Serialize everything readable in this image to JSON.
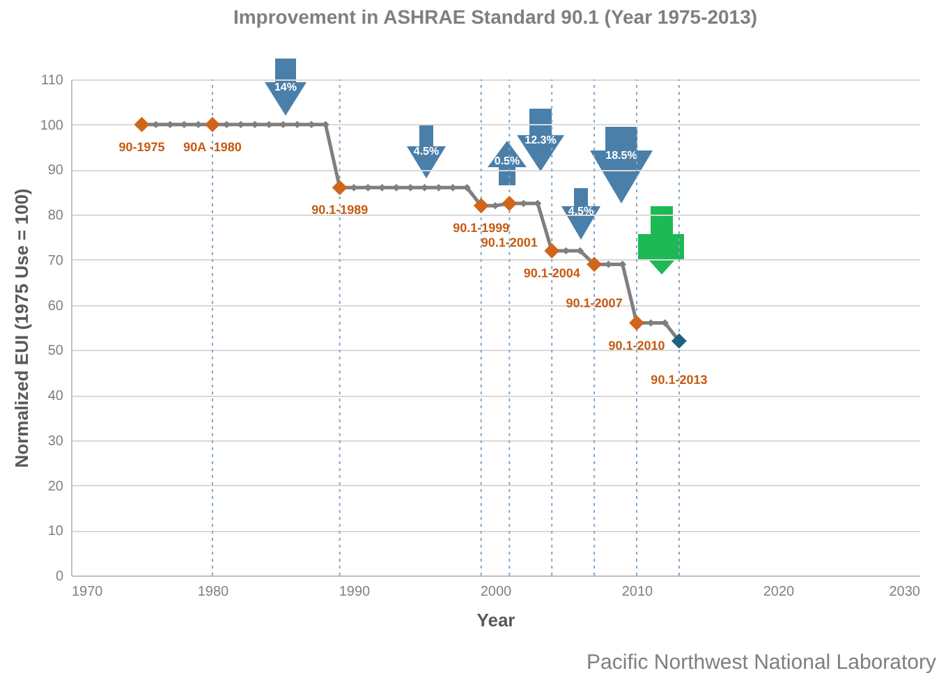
{
  "chart_data": {
    "type": "line",
    "title": "Improvement in ASHRAE Standard 90.1 (Year 1975-2013)",
    "xlabel": "Year",
    "ylabel": "Normalized EUI (1975 Use = 100)",
    "xlim": [
      1970,
      2030
    ],
    "xticks": [
      1970,
      1980,
      1990,
      2000,
      2010,
      2020,
      2030
    ],
    "ylim": [
      0,
      110
    ],
    "yticks": [
      0,
      10,
      20,
      30,
      40,
      50,
      60,
      70,
      80,
      90,
      100,
      110
    ],
    "grid": "y",
    "marker": "diamond",
    "line_style": "solid",
    "series": [
      {
        "type": "line",
        "color": "#7f7f7f",
        "x": [
          1975,
          1976,
          1977,
          1978,
          1979,
          1980,
          1981,
          1982,
          1983,
          1984,
          1985,
          1986,
          1987,
          1988,
          1989,
          1990,
          1991,
          1992,
          1993,
          1994,
          1995,
          1996,
          1997,
          1998,
          1999,
          2000,
          2001,
          2002,
          2003,
          2004,
          2005,
          2006,
          2007,
          2008,
          2009,
          2010,
          2011,
          2012,
          2013
        ],
        "values": [
          100,
          100,
          100,
          100,
          100,
          100,
          100,
          100,
          100,
          100,
          100,
          100,
          100,
          100,
          86,
          86,
          86,
          86,
          86,
          86,
          86,
          86,
          86,
          86,
          82,
          82,
          82.5,
          82.5,
          82.5,
          72,
          72,
          72,
          69,
          69,
          69,
          56,
          56,
          56,
          52
        ]
      },
      {
        "type": "scatter",
        "colors": [
          "#d0661b",
          "#d0661b",
          "#d0661b",
          "#d0661b",
          "#d0661b",
          "#d0661b",
          "#d0661b",
          "#d0661b",
          "#1f5f7f"
        ],
        "x": [
          1975,
          1980,
          1989,
          1999,
          2001,
          2004,
          2007,
          2010,
          2013
        ],
        "values": [
          100,
          100,
          86,
          82,
          82.5,
          72,
          69,
          56,
          52
        ]
      }
    ],
    "ref_lines": [
      {
        "axis": "x",
        "value": 1980,
        "color": "#7fa6c8",
        "line_style": "dotted"
      },
      {
        "axis": "x",
        "value": 1989,
        "color": "#7fa6c8",
        "line_style": "dotted"
      },
      {
        "axis": "x",
        "value": 1999,
        "color": "#7fa6c8",
        "line_style": "dotted"
      },
      {
        "axis": "x",
        "value": 2001,
        "color": "#7fa6c8",
        "line_style": "dotted"
      },
      {
        "axis": "x",
        "value": 2004,
        "color": "#7fa6c8",
        "line_style": "dotted"
      },
      {
        "axis": "x",
        "value": 2007,
        "color": "#7fa6c8",
        "line_style": "dotted"
      },
      {
        "axis": "x",
        "value": 2010,
        "color": "#7fa6c8",
        "line_style": "dotted"
      },
      {
        "axis": "x",
        "value": 2013,
        "color": "#7fa6c8",
        "line_style": "dotted"
      }
    ],
    "annotations": [
      {
        "text": "90-1975",
        "x": 1975,
        "y": 100
      },
      {
        "text": "90A -1980",
        "x": 1980,
        "y": 100
      },
      {
        "text": "90.1-1989",
        "x": 1989,
        "y": 86
      },
      {
        "text": "90.1-1999",
        "x": 1999,
        "y": 82
      },
      {
        "text": "90.1-2001",
        "x": 2001,
        "y": 82.5
      },
      {
        "text": "90.1-2004",
        "x": 2004,
        "y": 72
      },
      {
        "text": "90.1-2007",
        "x": 2007,
        "y": 69
      },
      {
        "text": "90.1-2010",
        "x": 2010,
        "y": 56
      },
      {
        "text": "90.1-2013",
        "x": 2013,
        "y": 52
      },
      "14%",
      "4.5%",
      "0.5%",
      "12.3%",
      "4.5%",
      "18.5%",
      "Pacific Northwest National Laboratory"
    ]
  }
}
